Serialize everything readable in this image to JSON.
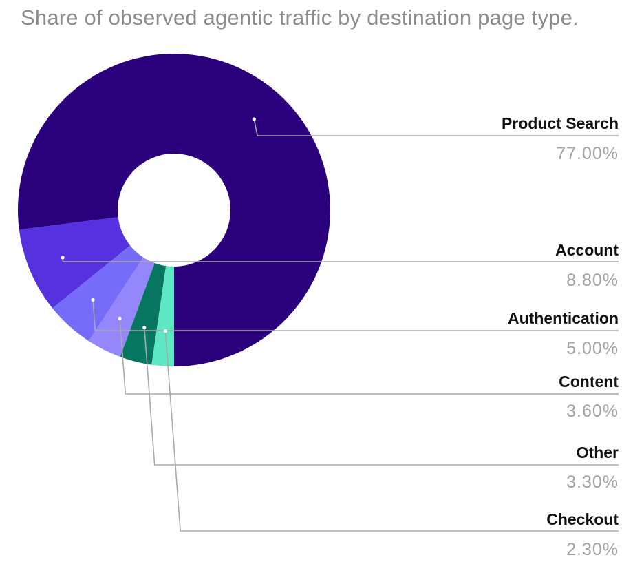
{
  "chart_data": {
    "type": "pie",
    "title": "Share of observed agentic traffic by destination page type.",
    "slices": [
      {
        "label": "Product Search",
        "value": 77.0,
        "display": "77.00%",
        "color": "#2a007d"
      },
      {
        "label": "Account",
        "value": 8.8,
        "display": "8.80%",
        "color": "#5631df"
      },
      {
        "label": "Authentication",
        "value": 5.0,
        "display": "5.00%",
        "color": "#756cf9"
      },
      {
        "label": "Content",
        "value": 3.6,
        "display": "3.60%",
        "color": "#9486fb"
      },
      {
        "label": "Other",
        "value": 3.3,
        "display": "3.30%",
        "color": "#077660"
      },
      {
        "label": "Checkout",
        "value": 2.3,
        "display": "2.30%",
        "color": "#5ee7c3"
      }
    ],
    "donut": true,
    "label_placement": "right"
  }
}
